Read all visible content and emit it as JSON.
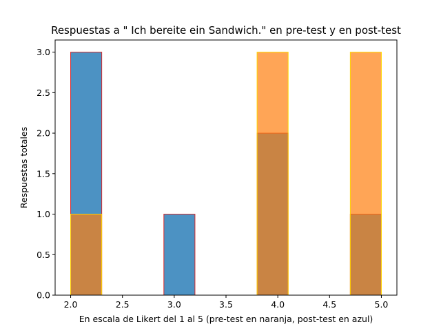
{
  "chart_data": {
    "type": "bar",
    "title": "Respuestas a \" Ich bereite ein Sandwich.\" en pre-test y en post-test",
    "xlabel": "En escala de Likert del 1 al 5 (pre-test en naranja, post-test en azul)",
    "ylabel": "Respuestas totales",
    "xlim": [
      1.85,
      5.15
    ],
    "ylim": [
      0,
      3.15
    ],
    "xticks": [
      "2.0",
      "2.5",
      "3.0",
      "3.5",
      "4.0",
      "4.5",
      "5.0"
    ],
    "xtick_values": [
      2.0,
      2.5,
      3.0,
      3.5,
      4.0,
      4.5,
      5.0
    ],
    "yticks": [
      "0.0",
      "0.5",
      "1.0",
      "1.5",
      "2.0",
      "2.5",
      "3.0"
    ],
    "ytick_values": [
      0,
      0.5,
      1.0,
      1.5,
      2.0,
      2.5,
      3.0
    ],
    "grid": false,
    "bin_edges": [
      2.0,
      2.3,
      2.6,
      2.9,
      3.2,
      3.5,
      3.8,
      4.1,
      4.4,
      4.7,
      5.0
    ],
    "series": [
      {
        "values": [
          3,
          0,
          0,
          1,
          0,
          0,
          2,
          0,
          0,
          1
        ],
        "color": "#1f77b4",
        "edgecolor": "#d62728",
        "alpha": 0.8
      },
      {
        "values": [
          1,
          0,
          0,
          0,
          0,
          0,
          3,
          0,
          0,
          3
        ],
        "color": "#ff7f0e",
        "edgecolor": "#ffd700",
        "alpha": 0.7
      }
    ]
  }
}
